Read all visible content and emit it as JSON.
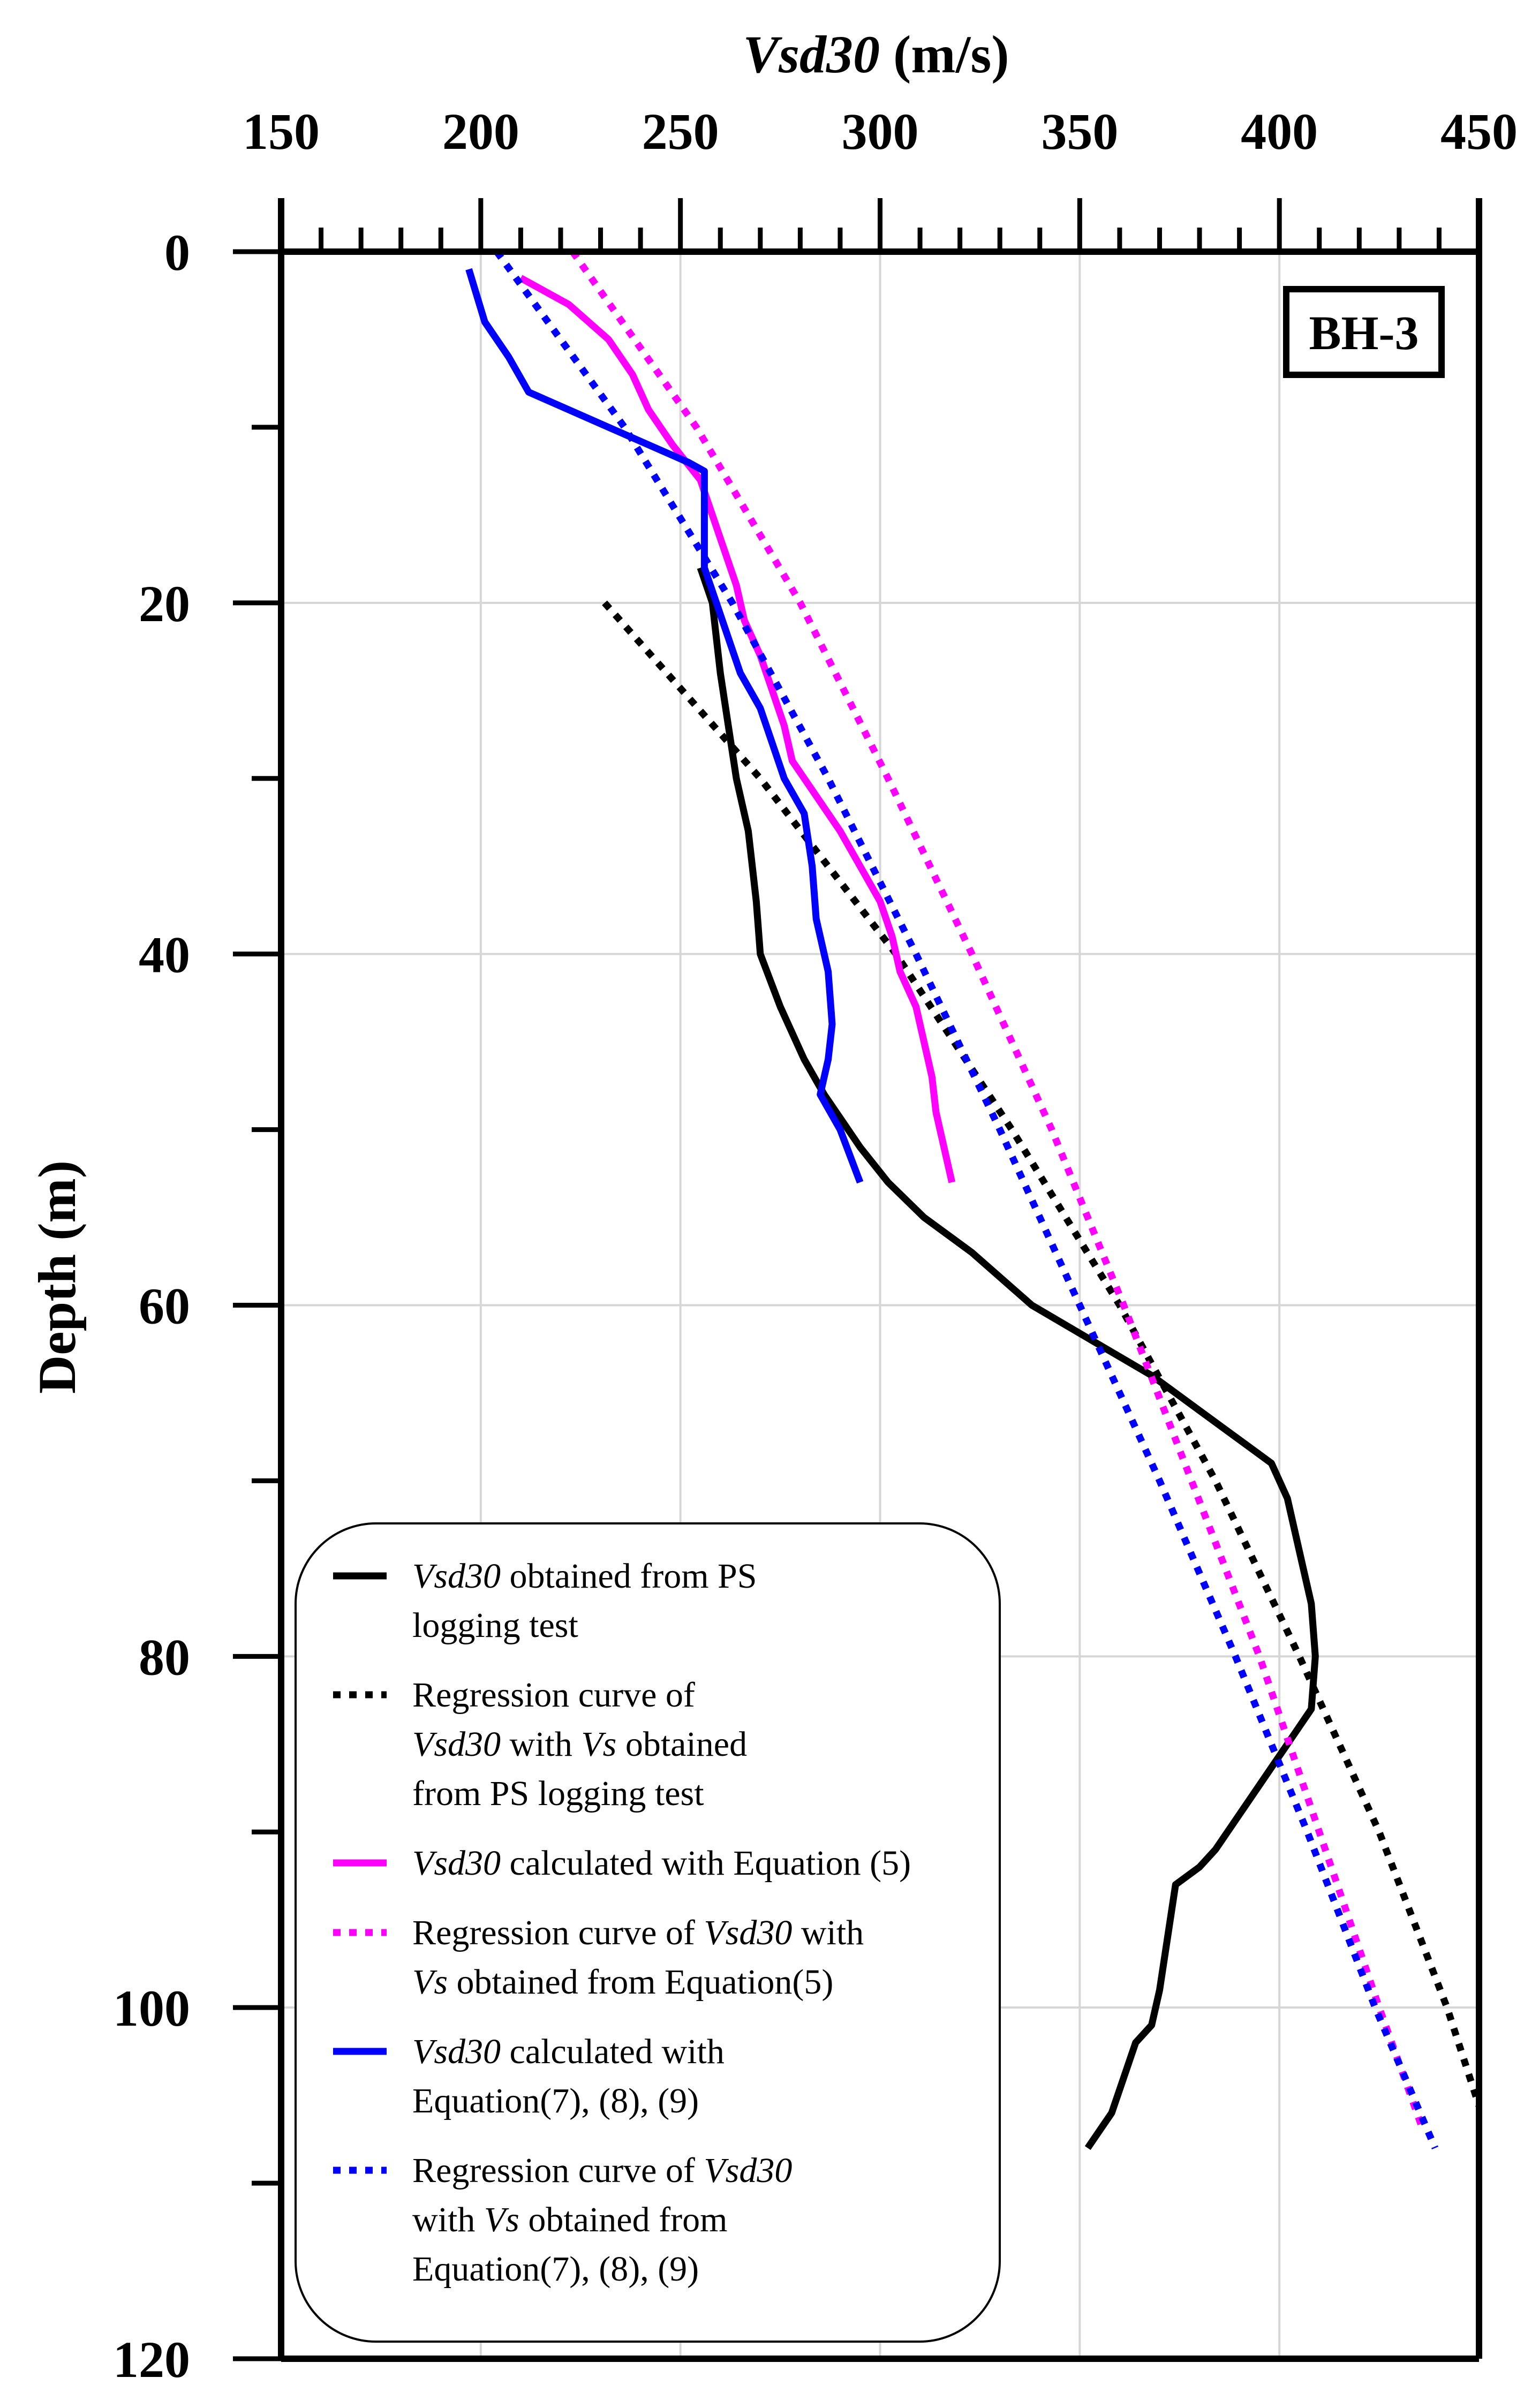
{
  "chart_data": {
    "type": "line",
    "xlabel_var": "Vsd30",
    "xlabel_unit": " (m/s)",
    "ylabel": "Depth (m)",
    "xlim": [
      150,
      450
    ],
    "ylim": [
      0,
      120
    ],
    "y_inverted": true,
    "x_ticks": [
      150,
      200,
      250,
      300,
      350,
      400,
      450
    ],
    "y_ticks": [
      0,
      20,
      40,
      60,
      80,
      100,
      120
    ],
    "grid": true,
    "legend_position": "bottom-left",
    "annotation": "BH-3",
    "series": [
      {
        "name": "Vsd30 obtained from PS logging test",
        "label_parts": [
          [
            "Vsd30",
            true
          ],
          [
            " obtained from PS",
            false
          ],
          [
            "\n",
            false
          ],
          [
            "logging test",
            false
          ]
        ],
        "color": "#000000",
        "style": "solid",
        "points": [
          [
            255,
            18
          ],
          [
            258,
            20
          ],
          [
            260,
            24
          ],
          [
            262,
            27
          ],
          [
            264,
            30
          ],
          [
            267,
            33
          ],
          [
            269,
            37
          ],
          [
            270,
            40
          ],
          [
            275,
            43
          ],
          [
            281,
            46
          ],
          [
            286,
            48
          ],
          [
            295,
            51
          ],
          [
            302,
            53
          ],
          [
            311,
            55
          ],
          [
            323,
            57
          ],
          [
            338,
            60
          ],
          [
            353,
            62
          ],
          [
            368,
            64
          ],
          [
            380,
            66
          ],
          [
            392,
            68
          ],
          [
            398,
            69
          ],
          [
            402,
            71
          ],
          [
            405,
            74
          ],
          [
            408,
            77
          ],
          [
            409,
            80
          ],
          [
            408,
            83
          ],
          [
            402,
            85
          ],
          [
            396,
            87
          ],
          [
            390,
            89
          ],
          [
            384,
            91
          ],
          [
            380,
            92
          ],
          [
            374,
            93
          ],
          [
            372,
            96
          ],
          [
            370,
            99
          ],
          [
            368,
            101
          ],
          [
            364,
            102
          ],
          [
            361,
            104
          ],
          [
            358,
            106
          ],
          [
            352,
            108
          ]
        ]
      },
      {
        "name": "Regression curve of Vsd30 with Vs obtained from PS logging test",
        "label_parts": [
          [
            "Regression curve of",
            false
          ],
          [
            "\n",
            false
          ],
          [
            "Vsd30",
            true
          ],
          [
            " with ",
            false
          ],
          [
            "Vs",
            true
          ],
          [
            " obtained",
            false
          ],
          [
            "\n",
            false
          ],
          [
            "from PS logging test",
            false
          ]
        ],
        "color": "#000000",
        "style": "dotted",
        "points": [
          [
            231,
            20
          ],
          [
            270,
            30
          ],
          [
            304,
            40
          ],
          [
            333,
            50
          ],
          [
            360,
            60
          ],
          [
            384,
            70
          ],
          [
            405,
            80
          ],
          [
            425,
            90
          ],
          [
            442,
            100
          ],
          [
            452,
            107
          ]
        ]
      },
      {
        "name": "Vsd30 calculated with Equation (5)",
        "label_parts": [
          [
            "Vsd30",
            true
          ],
          [
            " calculated with Equation (5)",
            false
          ]
        ],
        "color": "#ff00ff",
        "style": "solid",
        "points": [
          [
            210,
            1.5
          ],
          [
            222,
            3
          ],
          [
            232,
            5
          ],
          [
            238,
            7
          ],
          [
            242,
            9
          ],
          [
            248,
            11
          ],
          [
            255,
            13
          ],
          [
            258,
            15
          ],
          [
            261,
            17
          ],
          [
            264,
            19
          ],
          [
            266,
            21
          ],
          [
            270,
            23
          ],
          [
            273,
            25
          ],
          [
            276,
            27
          ],
          [
            278,
            29
          ],
          [
            284,
            31
          ],
          [
            290,
            33
          ],
          [
            295,
            35
          ],
          [
            300,
            37
          ],
          [
            303,
            39
          ],
          [
            305,
            41
          ],
          [
            309,
            43
          ],
          [
            311,
            45
          ],
          [
            313,
            47
          ],
          [
            314,
            49
          ],
          [
            316,
            51
          ],
          [
            318,
            53
          ]
        ]
      },
      {
        "name": "Regression curve of Vsd30 with Vs obtained from Equation(5)",
        "label_parts": [
          [
            "Regression curve of ",
            false
          ],
          [
            "Vsd30",
            true
          ],
          [
            " with",
            false
          ],
          [
            "\n",
            false
          ],
          [
            "Vs",
            true
          ],
          [
            " obtained from Equation(5)",
            false
          ]
        ],
        "color": "#ff00ff",
        "style": "dotted",
        "points": [
          [
            223,
            0
          ],
          [
            254,
            10
          ],
          [
            280,
            20
          ],
          [
            302,
            30
          ],
          [
            323,
            40
          ],
          [
            343,
            50
          ],
          [
            361,
            60
          ],
          [
            378,
            70
          ],
          [
            395,
            80
          ],
          [
            410,
            90
          ],
          [
            425,
            100
          ],
          [
            436,
            107
          ]
        ]
      },
      {
        "name": "Vsd30 calculated with Equation(7), (8), (9)",
        "label_parts": [
          [
            "Vsd30",
            true
          ],
          [
            " calculated with",
            false
          ],
          [
            "\n",
            false
          ],
          [
            "Equation(7), (8), (9)",
            false
          ]
        ],
        "color": "#0000ff",
        "style": "solid",
        "points": [
          [
            197,
            1
          ],
          [
            201,
            4
          ],
          [
            207,
            6
          ],
          [
            212,
            8
          ],
          [
            232,
            10
          ],
          [
            252,
            12
          ],
          [
            256,
            12.5
          ],
          [
            256,
            15
          ],
          [
            256,
            18
          ],
          [
            259,
            20
          ],
          [
            262,
            22
          ],
          [
            265,
            24
          ],
          [
            270,
            26
          ],
          [
            273,
            28
          ],
          [
            276,
            30
          ],
          [
            281,
            32
          ],
          [
            283,
            35
          ],
          [
            284,
            38
          ],
          [
            287,
            41
          ],
          [
            288,
            44
          ],
          [
            287,
            46
          ],
          [
            285,
            48
          ],
          [
            290,
            50
          ],
          [
            295,
            53
          ]
        ]
      },
      {
        "name": "Regression curve of Vsd30 with Vs obtained from Equation(7), (8), (9)",
        "label_parts": [
          [
            "Regression curve of ",
            false
          ],
          [
            "Vsd30",
            true
          ],
          [
            "\n",
            false
          ],
          [
            "with ",
            false
          ],
          [
            "Vs",
            true
          ],
          [
            " obtained from",
            false
          ],
          [
            "\n",
            false
          ],
          [
            "Equation(7), (8), (9)",
            false
          ]
        ],
        "color": "#0000ff",
        "style": "dotted",
        "points": [
          [
            204,
            0
          ],
          [
            236,
            10
          ],
          [
            263,
            20
          ],
          [
            287,
            30
          ],
          [
            309,
            40
          ],
          [
            330,
            50
          ],
          [
            350,
            60
          ],
          [
            370,
            70
          ],
          [
            389,
            80
          ],
          [
            407,
            90
          ],
          [
            424,
            100
          ],
          [
            439,
            108
          ]
        ]
      }
    ]
  }
}
